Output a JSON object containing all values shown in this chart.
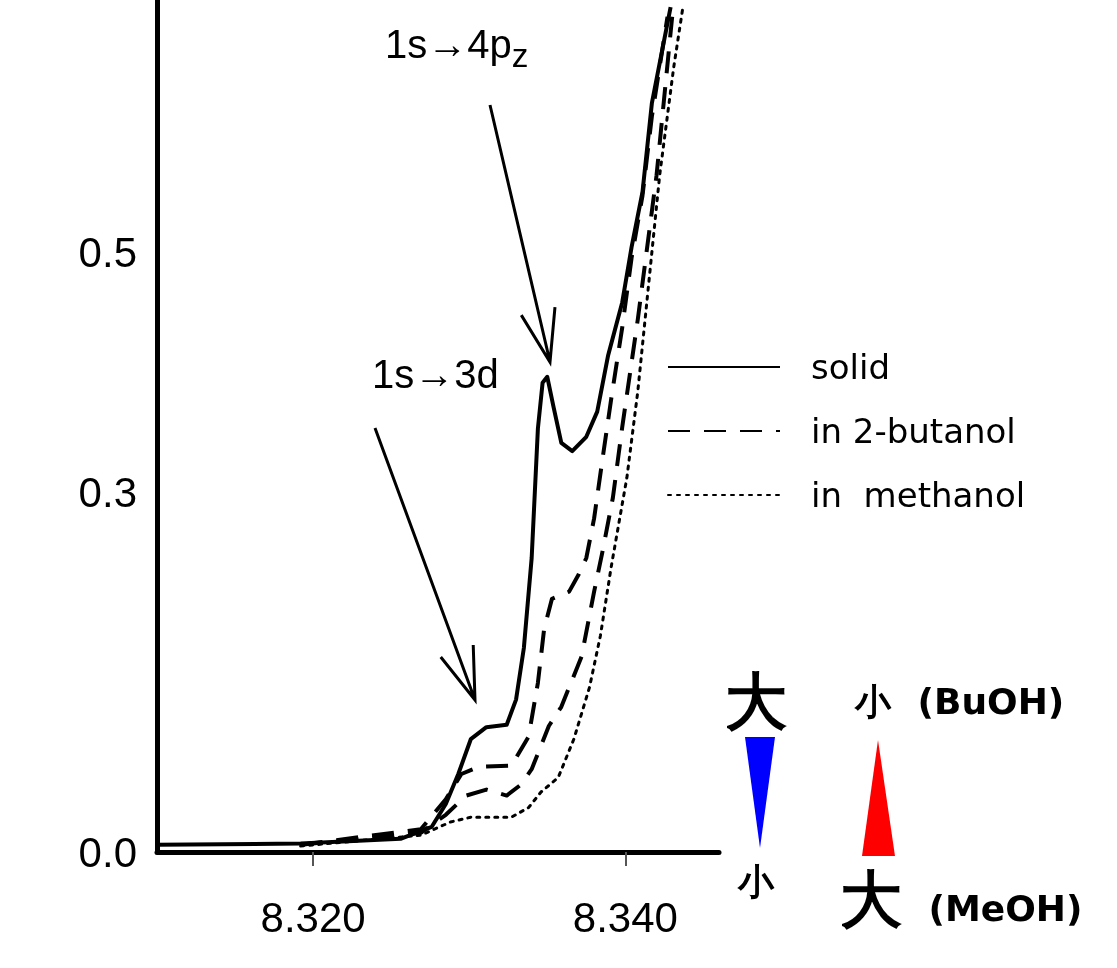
{
  "chart_data": {
    "type": "line",
    "xlim": [
      8.31,
      8.346
    ],
    "xticks": [
      {
        "value": 8.32,
        "label": "8.320"
      },
      {
        "value": 8.34,
        "label": "8.340"
      }
    ],
    "ylim": [
      0,
      0.71
    ],
    "yticks": [
      {
        "value": 0,
        "label": "0.0"
      },
      0.3,
      0.5
    ],
    "grid": false,
    "legend": "right",
    "marker": "none",
    "series": [
      {
        "name": "solid",
        "color": "#000000",
        "line_style": "solid",
        "x": [
          8.31,
          8.3192,
          8.3256,
          8.3276,
          8.3285,
          8.3293,
          8.3301,
          8.3311,
          8.3324,
          8.333,
          8.3335,
          8.334,
          8.3344,
          8.3347,
          8.335,
          8.3354,
          8.3359,
          8.3366,
          8.3375,
          8.3382,
          8.3389,
          8.3398,
          8.3404,
          8.3411,
          8.3417,
          8.3429
        ],
        "values": [
          0.006,
          0.007,
          0.011,
          0.021,
          0.04,
          0.065,
          0.094,
          0.104,
          0.106,
          0.127,
          0.17,
          0.245,
          0.353,
          0.391,
          0.396,
          0.371,
          0.341,
          0.334,
          0.346,
          0.367,
          0.414,
          0.458,
          0.504,
          0.55,
          0.624,
          0.704
        ]
      },
      {
        "name": "in 2-butanol",
        "color": "#000000",
        "line_style": "dashed",
        "x": [
          8.3192,
          8.3269,
          8.3285,
          8.3295,
          8.3306,
          8.3327,
          8.3338,
          8.3344,
          8.3348,
          8.3353,
          8.3364,
          8.337,
          8.3375,
          8.338,
          8.3385,
          8.3391,
          8.3398,
          8.3404,
          8.3411,
          8.3417,
          8.3427
        ],
        "values": [
          0.006,
          0.019,
          0.044,
          0.065,
          0.071,
          0.072,
          0.096,
          0.141,
          0.186,
          0.211,
          0.217,
          0.231,
          0.245,
          0.278,
          0.324,
          0.378,
          0.437,
          0.495,
          0.547,
          0.613,
          0.696
        ]
      },
      {
        "color": "#000000",
        "line_style": "dashed",
        "x": [
          8.3192,
          8.3269,
          8.3285,
          8.3298,
          8.3311,
          8.3324,
          8.3333,
          8.334,
          8.3351,
          8.3359,
          8.3372,
          8.338,
          8.3385,
          8.3392,
          8.3398,
          8.3408,
          8.342,
          8.343
        ],
        "values": [
          0.006,
          0.016,
          0.031,
          0.047,
          0.052,
          0.047,
          0.056,
          0.069,
          0.105,
          0.121,
          0.163,
          0.217,
          0.248,
          0.295,
          0.354,
          0.444,
          0.564,
          0.696
        ]
      },
      {
        "name": "in  methanol",
        "color": "#000000",
        "line_style": "dotted",
        "x": [
          8.3192,
          8.3269,
          8.3288,
          8.3301,
          8.3327,
          8.3338,
          8.3346,
          8.3357,
          8.3367,
          8.3377,
          8.3384,
          8.3391,
          8.3401,
          8.3408,
          8.3415,
          8.3422,
          8.3431,
          8.3437
        ],
        "values": [
          0.005,
          0.014,
          0.025,
          0.029,
          0.029,
          0.037,
          0.05,
          0.062,
          0.094,
          0.137,
          0.18,
          0.238,
          0.312,
          0.384,
          0.474,
          0.564,
          0.654,
          0.705
        ]
      }
    ],
    "annotations": [
      "1s→3d",
      "1s→4p$_{z}$",
      "大",
      "小 (BuOH)",
      "小",
      "大 (MeOH)"
    ]
  }
}
